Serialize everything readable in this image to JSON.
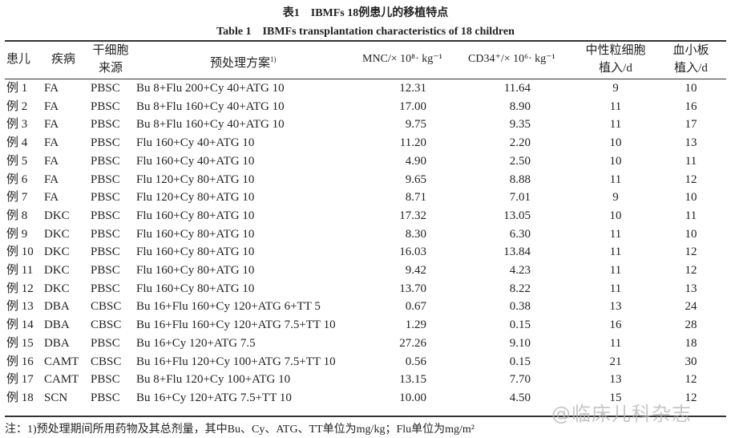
{
  "title_cn": "表1　IBMFs 18例患儿的移植特点",
  "title_en": "Table 1　IBMFs transplantation characteristics of 18 children",
  "headers": {
    "patient": "患儿",
    "disease": "疾病",
    "source_l1": "干细胞",
    "source_l2": "来源",
    "regimen": "预处理方案",
    "regimen_sup": "1)",
    "mnc": "MNC/× 10⁸· kg⁻¹",
    "cd34": "CD34⁺/× 10⁶· kg⁻¹",
    "neut_l1": "中性粒细胞",
    "neut_l2": "植入/d",
    "plt_l1": "血小板",
    "plt_l2": "植入/d"
  },
  "rows": [
    [
      "例 1",
      "FA",
      "PBSC",
      "Bu 8+Flu 200+Cy 40+ATG 10",
      "12.31",
      "11.64",
      "9",
      "10"
    ],
    [
      "例 2",
      "FA",
      "PBSC",
      "Bu 8+Flu 160+Cy 40+ATG 10",
      "17.00",
      "8.90",
      "11",
      "16"
    ],
    [
      "例 3",
      "FA",
      "PBSC",
      "Bu 8+Flu 160+Cy 40+ATG 10",
      "9.75",
      "9.35",
      "11",
      "17"
    ],
    [
      "例 4",
      "FA",
      "PBSC",
      "Flu 160+Cy 40+ATG 10",
      "11.20",
      "2.20",
      "10",
      "13"
    ],
    [
      "例 5",
      "FA",
      "PBSC",
      "Flu 160+Cy 40+ATG 10",
      "4.90",
      "2.50",
      "10",
      "11"
    ],
    [
      "例 6",
      "FA",
      "PBSC",
      "Flu 120+Cy 80+ATG 10",
      "9.65",
      "8.88",
      "11",
      "12"
    ],
    [
      "例 7",
      "FA",
      "PBSC",
      "Flu 120+Cy 80+ATG 10",
      "8.71",
      "7.01",
      "9",
      "10"
    ],
    [
      "例 8",
      "DKC",
      "PBSC",
      "Flu 160+Cy 80+ATG 10",
      "17.32",
      "13.05",
      "10",
      "11"
    ],
    [
      "例 9",
      "DKC",
      "PBSC",
      "Flu 160+Cy 80+ATG 10",
      "8.30",
      "6.30",
      "11",
      "10"
    ],
    [
      "例 10",
      "DKC",
      "PBSC",
      "Flu 160+Cy 80+ATG 10",
      "16.03",
      "13.84",
      "11",
      "12"
    ],
    [
      "例 11",
      "DKC",
      "PBSC",
      "Flu 160+Cy 80+ATG 10",
      "9.42",
      "4.23",
      "11",
      "12"
    ],
    [
      "例 12",
      "DKC",
      "PBSC",
      "Flu 160+Cy 80+ATG 10",
      "13.70",
      "8.22",
      "11",
      "13"
    ],
    [
      "例 13",
      "DBA",
      "CBSC",
      "Bu 16+Flu 160+Cy 120+ATG 6+TT 5",
      "0.67",
      "0.38",
      "13",
      "24"
    ],
    [
      "例 14",
      "DBA",
      "CBSC",
      "Bu 16+Flu 160+Cy 120+ATG 7.5+TT 10",
      "1.29",
      "0.15",
      "16",
      "28"
    ],
    [
      "例 15",
      "DBA",
      "PBSC",
      "Bu 16+Cy 120+ATG 7.5",
      "27.26",
      "9.10",
      "11",
      "18"
    ],
    [
      "例 16",
      "CAMT",
      "CBSC",
      "Bu 16+Flu 120+Cy 100+ATG 7.5+TT 10",
      "0.56",
      "0.15",
      "21",
      "30"
    ],
    [
      "例 17",
      "CAMT",
      "PBSC",
      "Bu 8+Flu 120+Cy 100+ATG 10",
      "13.15",
      "7.70",
      "13",
      "12"
    ],
    [
      "例 18",
      "SCN",
      "PBSC",
      "Bu 16+Cy 120+ATG 7.5+TT 10",
      "10.00",
      "4.50",
      "15",
      "12"
    ]
  ],
  "note": "注：1)预处理期间所用药物及其总剂量，其中Bu、Cy、ATG、TT单位为mg/kg；Flu单位为mg/m²",
  "watermark": "@临床儿科杂志"
}
